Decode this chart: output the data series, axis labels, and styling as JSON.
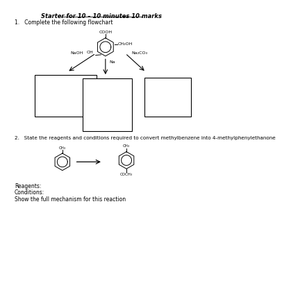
{
  "title": "Starter for 10 – 10 minutes 10 marks",
  "q1_text": "1.   Complete the following flowchart",
  "q2_text": "2.   State the reagents and conditions required to convert methylbenzene into 4-methylphenylethanone",
  "reagents_text": "Reagents:",
  "conditions_text": "Conditions:",
  "mechanism_text": "Show the full mechanism for this reaction",
  "reagent_left": "NaOH",
  "reagent_right": "Na₂CO₃",
  "reagent_down": "Na",
  "ch2oh": "CH₂OH",
  "ch3_top": "CH₃",
  "coch3": "COCH₃",
  "bg_color": "#ffffff",
  "box_color": "#000000",
  "text_color": "#000000"
}
